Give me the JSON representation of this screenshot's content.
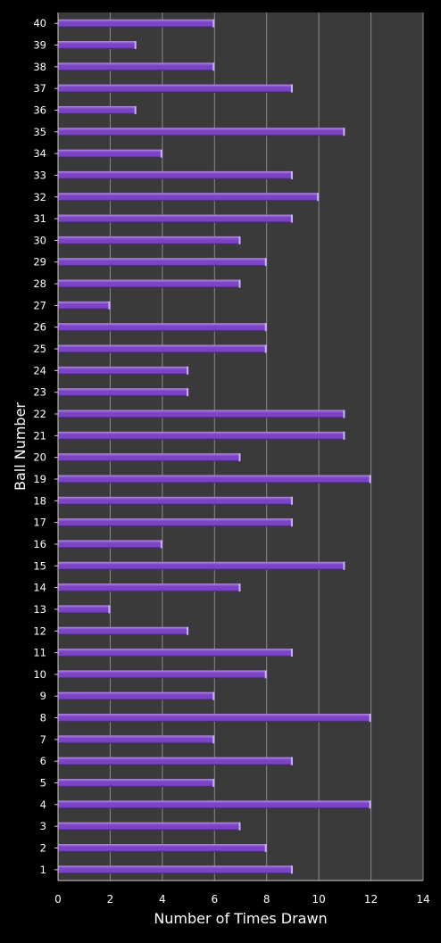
{
  "chart_data": {
    "type": "bar",
    "orientation": "horizontal",
    "xlabel": "Number of Times Drawn",
    "ylabel": "Ball Number",
    "xlim": [
      0,
      14
    ],
    "x_ticks": [
      0,
      2,
      4,
      6,
      8,
      10,
      12,
      14
    ],
    "grid": true,
    "legend": "none",
    "categories": [
      "1",
      "2",
      "3",
      "4",
      "5",
      "6",
      "7",
      "8",
      "9",
      "10",
      "11",
      "12",
      "13",
      "14",
      "15",
      "16",
      "17",
      "18",
      "19",
      "20",
      "21",
      "22",
      "23",
      "24",
      "25",
      "26",
      "27",
      "28",
      "29",
      "30",
      "31",
      "32",
      "33",
      "34",
      "35",
      "36",
      "37",
      "38",
      "39",
      "40"
    ],
    "values": [
      9,
      8,
      7,
      12,
      6,
      9,
      6,
      12,
      6,
      8,
      9,
      5,
      2,
      7,
      11,
      4,
      9,
      9,
      12,
      7,
      11,
      11,
      5,
      5,
      8,
      8,
      2,
      7,
      8,
      7,
      9,
      10,
      9,
      4,
      11,
      3,
      9,
      6,
      3,
      6
    ],
    "colors": {
      "background": "#000000",
      "plot_area": "#3a3a3a",
      "gridline": "#8a8a8a",
      "bar_top": "#b48ae6",
      "bar_main": "#7a44c4",
      "bar_bottom": "#3e1d6e",
      "bar_end": "#c9b3ea",
      "text": "#ffffff"
    }
  }
}
